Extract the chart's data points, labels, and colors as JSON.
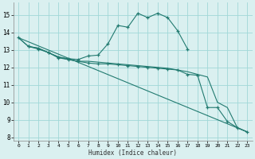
{
  "xlabel": "Humidex (Indice chaleur)",
  "bg_color": "#daf0f0",
  "grid_color": "#a0d8d8",
  "line_color": "#217a70",
  "xlim": [
    -0.5,
    23.5
  ],
  "ylim": [
    7.8,
    15.7
  ],
  "xticks": [
    0,
    1,
    2,
    3,
    4,
    5,
    6,
    7,
    8,
    9,
    10,
    11,
    12,
    13,
    14,
    15,
    16,
    17,
    18,
    19,
    20,
    21,
    22,
    23
  ],
  "yticks": [
    8,
    9,
    10,
    11,
    12,
    13,
    14,
    15
  ],
  "lines": [
    {
      "x": [
        0,
        1,
        2,
        3,
        4,
        5,
        6,
        7,
        8,
        9,
        10,
        11,
        12,
        13,
        14,
        15,
        16,
        17
      ],
      "y": [
        13.7,
        13.2,
        13.1,
        12.85,
        12.6,
        12.5,
        12.45,
        12.65,
        12.7,
        13.35,
        14.4,
        14.3,
        15.1,
        14.85,
        15.1,
        14.85,
        14.1,
        13.05
      ],
      "marker": "+"
    },
    {
      "x": [
        0,
        1,
        2,
        3,
        4,
        5,
        6,
        7,
        8,
        9,
        10,
        11,
        12,
        13,
        14,
        15,
        16,
        17,
        18,
        19,
        20,
        21,
        22,
        23
      ],
      "y": [
        13.7,
        13.2,
        13.1,
        12.85,
        12.6,
        12.45,
        12.35,
        12.35,
        12.3,
        12.25,
        12.2,
        12.15,
        12.1,
        12.05,
        12.0,
        11.95,
        11.85,
        11.75,
        11.6,
        11.45,
        10.0,
        9.7,
        8.55,
        8.3
      ],
      "marker": null
    },
    {
      "x": [
        0,
        23
      ],
      "y": [
        13.7,
        8.3
      ],
      "marker": null
    },
    {
      "x": [
        1,
        2,
        3,
        4,
        5,
        6,
        7,
        8,
        9,
        10,
        11,
        12,
        13,
        14,
        15,
        16,
        17,
        18,
        19,
        20,
        21,
        22,
        23
      ],
      "y": [
        13.2,
        13.05,
        12.85,
        12.55,
        12.45,
        12.35,
        12.25,
        12.2,
        12.2,
        12.15,
        12.1,
        12.05,
        12.0,
        11.95,
        11.9,
        11.85,
        11.6,
        11.55,
        9.7,
        9.7,
        8.9,
        8.55,
        8.3
      ],
      "marker": "+"
    }
  ]
}
